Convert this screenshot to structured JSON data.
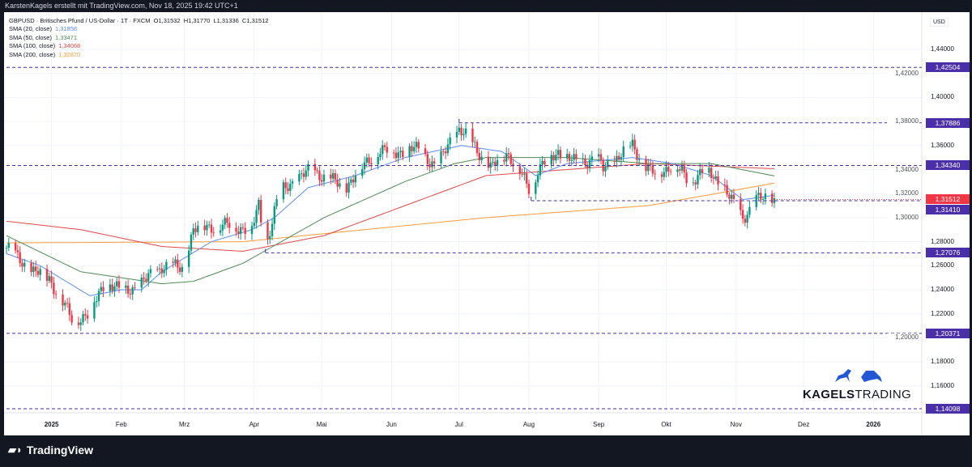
{
  "header": {
    "caption": "KarstenKagels erstellt mit TradingView.com, Nov 18, 2025 19:42 UTC+1"
  },
  "legend": {
    "symbol": "GBPUSD · Britisches Pfund / US-Dollar · 1T · FXCM  O1,31532  H1,31770  L1,31336  C1,31512",
    "smas": [
      {
        "label": "SMA (20, close)",
        "value": "1,31858",
        "color": "#5b8cf5"
      },
      {
        "label": "SMA (50, close)",
        "value": "1,33471",
        "color": "#4f8a55"
      },
      {
        "label": "SMA (100, close)",
        "value": "1,34068",
        "color": "#e04848"
      },
      {
        "label": "SMA (200, close)",
        "value": "1,32870",
        "color": "#f99b3a"
      }
    ]
  },
  "axis": {
    "currency": "USD",
    "ticks": [
      "1,44000",
      "1,42000",
      "1,40000",
      "1,38000",
      "1,36000",
      "1,34000",
      "1,32000",
      "1,30000",
      "1,28000",
      "1,26000",
      "1,24000",
      "1,22000",
      "1,20000",
      "1,18000",
      "1,16000"
    ],
    "months": [
      "2025",
      "Feb",
      "Mrz",
      "Apr",
      "Mai",
      "Jun",
      "Jul",
      "Aug",
      "Sep",
      "Okt",
      "Nov",
      "Dez",
      "2026"
    ]
  },
  "levels": [
    {
      "label": "1,42504",
      "value": 1.42504,
      "fromDay": 0
    },
    {
      "label": "1,37886",
      "value": 1.37886,
      "fromDay": 201
    },
    {
      "label": "1,34340",
      "value": 1.3434,
      "fromDay": 0
    },
    {
      "label": "1,31410",
      "value": 1.3141,
      "fromDay": 233
    },
    {
      "label": "1,27076",
      "value": 1.27076,
      "fromDay": 115
    },
    {
      "label": "1,20371",
      "value": 1.20371,
      "fromDay": 0
    },
    {
      "label": "1,14098",
      "value": 1.14098,
      "fromDay": 0
    }
  ],
  "current": {
    "label": "1,31512",
    "value": 1.31512,
    "color": "#f23645"
  },
  "level_color": "#4a2fa8",
  "brand": {
    "name_bold": "KAGELS",
    "name_light": "TRADING"
  },
  "footer": {
    "logo": "TradingView"
  },
  "chart_data": {
    "type": "candlestick",
    "symbol": "GBPUSD",
    "timeframe": "1D",
    "ylim": [
      1.13,
      1.455
    ],
    "start_date": "2024-12-12",
    "price_path": [
      [
        0,
        1.275
      ],
      [
        12,
        1.255
      ],
      [
        19,
        1.25
      ],
      [
        29,
        1.215
      ],
      [
        37,
        1.22
      ],
      [
        44,
        1.248
      ],
      [
        51,
        1.238
      ],
      [
        60,
        1.245
      ],
      [
        69,
        1.26
      ],
      [
        78,
        1.258
      ],
      [
        83,
        1.29
      ],
      [
        91,
        1.293
      ],
      [
        101,
        1.293
      ],
      [
        109,
        1.29
      ],
      [
        112,
        1.31
      ],
      [
        115,
        1.275
      ],
      [
        121,
        1.32
      ],
      [
        127,
        1.33
      ],
      [
        136,
        1.34
      ],
      [
        145,
        1.33
      ],
      [
        150,
        1.325
      ],
      [
        155,
        1.335
      ],
      [
        164,
        1.355
      ],
      [
        173,
        1.355
      ],
      [
        184,
        1.357
      ],
      [
        191,
        1.34
      ],
      [
        197,
        1.365
      ],
      [
        201,
        1.373
      ],
      [
        208,
        1.36
      ],
      [
        215,
        1.34
      ],
      [
        222,
        1.355
      ],
      [
        227,
        1.34
      ],
      [
        233,
        1.322
      ],
      [
        236,
        1.34
      ],
      [
        245,
        1.355
      ],
      [
        253,
        1.345
      ],
      [
        262,
        1.35
      ],
      [
        265,
        1.34
      ],
      [
        271,
        1.35
      ],
      [
        278,
        1.36
      ],
      [
        283,
        1.345
      ],
      [
        288,
        1.335
      ],
      [
        296,
        1.345
      ],
      [
        303,
        1.33
      ],
      [
        310,
        1.34
      ],
      [
        319,
        1.325
      ],
      [
        323,
        1.31
      ],
      [
        327,
        1.3
      ],
      [
        333,
        1.315
      ],
      [
        341,
        1.3151
      ]
    ],
    "sma20": [
      [
        0,
        1.27
      ],
      [
        15,
        1.26
      ],
      [
        37,
        1.235
      ],
      [
        51,
        1.24
      ],
      [
        60,
        1.24
      ],
      [
        69,
        1.255
      ],
      [
        91,
        1.28
      ],
      [
        109,
        1.29
      ],
      [
        119,
        1.3
      ],
      [
        134,
        1.325
      ],
      [
        155,
        1.335
      ],
      [
        177,
        1.35
      ],
      [
        202,
        1.36
      ],
      [
        220,
        1.355
      ],
      [
        235,
        1.335
      ],
      [
        249,
        1.345
      ],
      [
        278,
        1.35
      ],
      [
        296,
        1.345
      ],
      [
        313,
        1.335
      ],
      [
        327,
        1.315
      ],
      [
        341,
        1.3186
      ]
    ],
    "sma50": [
      [
        0,
        1.285
      ],
      [
        33,
        1.255
      ],
      [
        69,
        1.245
      ],
      [
        83,
        1.247
      ],
      [
        105,
        1.262
      ],
      [
        141,
        1.3
      ],
      [
        177,
        1.33
      ],
      [
        199,
        1.345
      ],
      [
        213,
        1.35
      ],
      [
        249,
        1.35
      ],
      [
        285,
        1.345
      ],
      [
        313,
        1.345
      ],
      [
        341,
        1.3347
      ]
    ],
    "sma100": [
      [
        0,
        1.297
      ],
      [
        33,
        1.29
      ],
      [
        69,
        1.276
      ],
      [
        105,
        1.272
      ],
      [
        141,
        1.285
      ],
      [
        177,
        1.31
      ],
      [
        213,
        1.335
      ],
      [
        249,
        1.34
      ],
      [
        285,
        1.345
      ],
      [
        341,
        1.3407
      ]
    ],
    "sma200": [
      [
        0,
        1.279
      ],
      [
        105,
        1.28
      ],
      [
        213,
        1.3
      ],
      [
        285,
        1.31
      ],
      [
        341,
        1.3287
      ]
    ]
  }
}
